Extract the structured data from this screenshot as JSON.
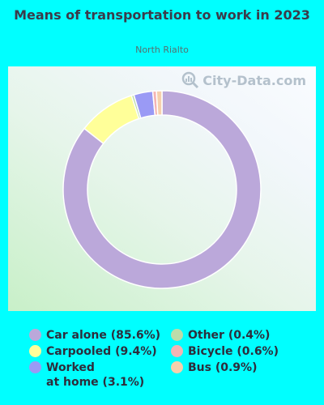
{
  "title": "Means of transportation to work in 2023",
  "subtitle": "North Rialto",
  "watermark": "City-Data.com",
  "colors": {
    "background": "#00ffff",
    "car_alone": "#bba8da",
    "carpooled": "#ffff99",
    "worked_at_home": "#9a9af5",
    "other": "#bcdcaa",
    "bicycle": "#f4b4b4",
    "bus": "#f6d0ac"
  },
  "chart_data": {
    "type": "pie",
    "title": "Means of transportation to work in 2023",
    "subtitle": "North Rialto",
    "legend_position": "bottom",
    "slices": [
      {
        "label": "Car alone (85.6%)",
        "value": 85.6,
        "color": "#bba8da"
      },
      {
        "label": "Carpooled (9.4%)",
        "value": 9.4,
        "color": "#ffff99"
      },
      {
        "label": "Other (0.4%)",
        "value": 0.4,
        "color": "#bcdcaa"
      },
      {
        "label": "Worked\nat home (3.1%)",
        "value": 3.1,
        "color": "#9a9af5"
      },
      {
        "label": "Bicycle (0.6%)",
        "value": 0.6,
        "color": "#f4b4b4"
      },
      {
        "label": "Bus (0.9%)",
        "value": 0.9,
        "color": "#f6d0ac"
      }
    ]
  },
  "legend": [
    {
      "label": "Car alone (85.6%)",
      "color": "#bba8da"
    },
    {
      "label": "Carpooled (9.4%)",
      "color": "#ffff99"
    },
    {
      "label": "Worked\nat home (3.1%)",
      "color": "#9a9af5"
    },
    {
      "label": "Other (0.4%)",
      "color": "#bcdcaa"
    },
    {
      "label": "Bicycle (0.6%)",
      "color": "#f4b4b4"
    },
    {
      "label": "Bus (0.9%)",
      "color": "#f6d0ac"
    }
  ]
}
